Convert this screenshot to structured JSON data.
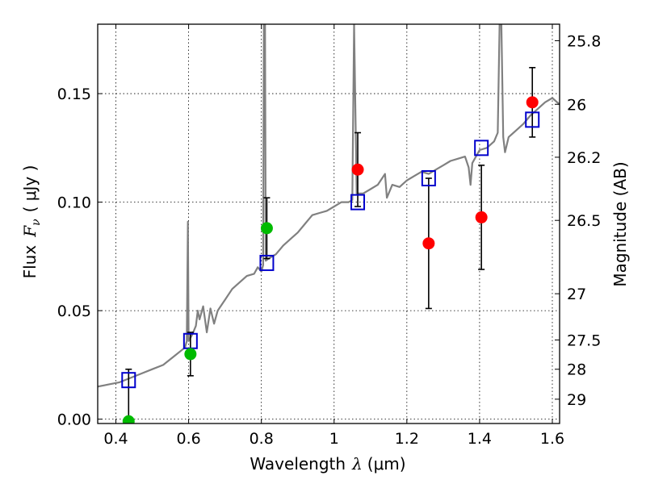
{
  "chart_data": {
    "type": "scatter",
    "xlabel_text": "Wavelength",
    "xlabel_symbol": "λ",
    "xlabel_unit": "(μm)",
    "ylabel_text": "Flux",
    "ylabel_symbol": "F",
    "ylabel_sub": "ν",
    "ylabel_unit": "( μJy )",
    "y2label": "Magnitude (AB)",
    "xlim": [
      0.35,
      1.62
    ],
    "ylim": [
      -0.002,
      0.182
    ],
    "xticks": [
      0.4,
      0.6,
      0.8,
      1.0,
      1.2,
      1.4,
      1.6
    ],
    "xtick_labels": [
      "0.4",
      "0.6",
      "0.8",
      "1",
      "1.2",
      "1.4",
      "1.6"
    ],
    "yticks": [
      0.0,
      0.05,
      0.1,
      0.15
    ],
    "ytick_labels": [
      "0.00",
      "0.05",
      "0.10",
      "0.15"
    ],
    "y2ticks": [
      {
        "label": "25.8",
        "flux": 0.1744
      },
      {
        "label": "26",
        "flux": 0.1451
      },
      {
        "label": "26.2",
        "flux": 0.1207
      },
      {
        "label": "26.5",
        "flux": 0.0916
      },
      {
        "label": "27",
        "flux": 0.0578
      },
      {
        "label": "27.5",
        "flux": 0.0365
      },
      {
        "label": "28",
        "flux": 0.023
      },
      {
        "label": "29",
        "flux": 0.0092
      }
    ],
    "grid": true,
    "colors": {
      "spectrum": "#808080",
      "model_points": "#0000cc",
      "green_points": "#00bb00",
      "red_points": "#ff0000",
      "errorbars": "#000000"
    },
    "series": [
      {
        "kind": "spectrum",
        "points": [
          [
            0.35,
            0.015
          ],
          [
            0.38,
            0.016
          ],
          [
            0.41,
            0.017
          ],
          [
            0.44,
            0.019
          ],
          [
            0.47,
            0.021
          ],
          [
            0.5,
            0.023
          ],
          [
            0.53,
            0.025
          ],
          [
            0.56,
            0.029
          ],
          [
            0.59,
            0.033
          ],
          [
            0.595,
            0.036
          ],
          [
            0.598,
            0.091
          ],
          [
            0.6,
            0.036
          ],
          [
            0.61,
            0.039
          ],
          [
            0.62,
            0.043
          ],
          [
            0.625,
            0.05
          ],
          [
            0.63,
            0.046
          ],
          [
            0.64,
            0.052
          ],
          [
            0.65,
            0.04
          ],
          [
            0.66,
            0.051
          ],
          [
            0.67,
            0.044
          ],
          [
            0.68,
            0.05
          ],
          [
            0.7,
            0.055
          ],
          [
            0.72,
            0.06
          ],
          [
            0.74,
            0.063
          ],
          [
            0.76,
            0.066
          ],
          [
            0.78,
            0.067
          ],
          [
            0.79,
            0.07
          ],
          [
            0.8,
            0.068
          ],
          [
            0.805,
            0.071
          ],
          [
            0.807,
            0.182
          ],
          [
            0.81,
            0.182
          ],
          [
            0.812,
            0.073
          ],
          [
            0.82,
            0.074
          ],
          [
            0.84,
            0.076
          ],
          [
            0.86,
            0.08
          ],
          [
            0.88,
            0.083
          ],
          [
            0.9,
            0.086
          ],
          [
            0.92,
            0.09
          ],
          [
            0.94,
            0.094
          ],
          [
            0.96,
            0.095
          ],
          [
            0.98,
            0.096
          ],
          [
            1.0,
            0.098
          ],
          [
            1.02,
            0.1
          ],
          [
            1.04,
            0.1
          ],
          [
            1.05,
            0.101
          ],
          [
            1.055,
            0.182
          ],
          [
            1.062,
            0.104
          ],
          [
            1.08,
            0.104
          ],
          [
            1.1,
            0.106
          ],
          [
            1.12,
            0.108
          ],
          [
            1.14,
            0.113
          ],
          [
            1.145,
            0.102
          ],
          [
            1.16,
            0.108
          ],
          [
            1.18,
            0.107
          ],
          [
            1.2,
            0.11
          ],
          [
            1.22,
            0.112
          ],
          [
            1.24,
            0.114
          ],
          [
            1.26,
            0.113
          ],
          [
            1.28,
            0.115
          ],
          [
            1.3,
            0.117
          ],
          [
            1.32,
            0.119
          ],
          [
            1.34,
            0.12
          ],
          [
            1.36,
            0.121
          ],
          [
            1.37,
            0.116
          ],
          [
            1.375,
            0.108
          ],
          [
            1.38,
            0.118
          ],
          [
            1.4,
            0.124
          ],
          [
            1.42,
            0.125
          ],
          [
            1.44,
            0.128
          ],
          [
            1.45,
            0.132
          ],
          [
            1.455,
            0.182
          ],
          [
            1.46,
            0.182
          ],
          [
            1.465,
            0.13
          ],
          [
            1.47,
            0.123
          ],
          [
            1.48,
            0.13
          ],
          [
            1.5,
            0.133
          ],
          [
            1.52,
            0.136
          ],
          [
            1.54,
            0.14
          ],
          [
            1.56,
            0.143
          ],
          [
            1.58,
            0.146
          ],
          [
            1.6,
            0.148
          ],
          [
            1.62,
            0.145
          ]
        ]
      },
      {
        "kind": "model_squares",
        "points": [
          [
            0.435,
            0.018
          ],
          [
            0.605,
            0.036
          ],
          [
            0.815,
            0.072
          ],
          [
            1.065,
            0.1
          ],
          [
            1.26,
            0.111
          ],
          [
            1.405,
            0.125
          ],
          [
            1.545,
            0.138
          ]
        ]
      },
      {
        "kind": "green_detections",
        "points": [
          {
            "x": 0.435,
            "y": -0.001,
            "err_lo": 0.024,
            "err_hi": 0.024
          },
          {
            "x": 0.605,
            "y": 0.03,
            "err_lo": 0.01,
            "err_hi": 0.01
          },
          {
            "x": 0.815,
            "y": 0.088,
            "err_lo": 0.014,
            "err_hi": 0.014
          }
        ]
      },
      {
        "kind": "red_detections",
        "points": [
          {
            "x": 1.065,
            "y": 0.115,
            "err_lo": 0.017,
            "err_hi": 0.017
          },
          {
            "x": 1.26,
            "y": 0.081,
            "err_lo": 0.03,
            "err_hi": 0.03
          },
          {
            "x": 1.405,
            "y": 0.093,
            "err_lo": 0.024,
            "err_hi": 0.024
          },
          {
            "x": 1.545,
            "y": 0.146,
            "err_lo": 0.016,
            "err_hi": 0.016
          }
        ]
      }
    ]
  }
}
